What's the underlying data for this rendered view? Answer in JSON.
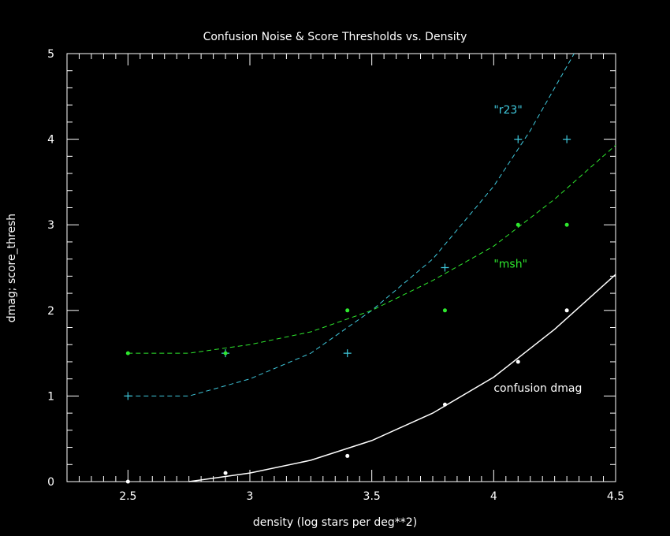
{
  "chart_data": {
    "type": "line",
    "title": "Confusion Noise & Score Thresholds vs. Density",
    "xlabel": "density (log stars per deg**2)",
    "ylabel": "dmag; score_thresh",
    "xlim": [
      2.25,
      4.5
    ],
    "ylim": [
      0,
      5
    ],
    "x_ticks": [
      "2.5",
      "3",
      "3.5",
      "4",
      "4.5"
    ],
    "x_tick_values": [
      2.5,
      3.0,
      3.5,
      4.0,
      4.5
    ],
    "y_ticks": [
      "0",
      "1",
      "2",
      "3",
      "4",
      "5"
    ],
    "y_tick_values": [
      0,
      1,
      2,
      3,
      4,
      5
    ],
    "background": "#000000",
    "axis_color": "#ffffff",
    "series": [
      {
        "name": "\"r23\"",
        "color": "#3fc8dc",
        "line_style": "dashed",
        "marker": "plus",
        "curve_x": [
          2.5,
          2.75,
          3.0,
          3.25,
          3.5,
          3.75,
          4.0,
          4.15,
          4.25,
          4.33
        ],
        "curve_y": [
          1.0,
          1.0,
          1.2,
          1.5,
          2.0,
          2.6,
          3.45,
          4.1,
          4.6,
          5.0
        ],
        "points_x": [
          2.5,
          2.9,
          3.4,
          3.8,
          4.1,
          4.3
        ],
        "points_y": [
          1.0,
          1.5,
          1.5,
          2.5,
          4.0,
          4.0
        ],
        "label": "\"r23\"",
        "label_pos": [
          4.0,
          4.3
        ]
      },
      {
        "name": "\"msh\"",
        "color": "#2ee82e",
        "line_style": "dashed",
        "marker": "dot",
        "curve_x": [
          2.5,
          2.75,
          3.0,
          3.25,
          3.5,
          3.75,
          4.0,
          4.25,
          4.5
        ],
        "curve_y": [
          1.5,
          1.5,
          1.6,
          1.75,
          2.0,
          2.35,
          2.75,
          3.3,
          3.93
        ],
        "points_x": [
          2.5,
          2.9,
          3.4,
          3.8,
          4.1,
          4.3
        ],
        "points_y": [
          1.5,
          1.5,
          2.0,
          2.0,
          3.0,
          3.0
        ],
        "label": "\"msh\"",
        "label_pos": [
          4.0,
          2.5
        ]
      },
      {
        "name": "confusion dmag",
        "color": "#ffffff",
        "line_style": "solid",
        "marker": "dot",
        "curve_x": [
          2.75,
          3.0,
          3.25,
          3.5,
          3.75,
          4.0,
          4.25,
          4.5
        ],
        "curve_y": [
          0.0,
          0.1,
          0.25,
          0.48,
          0.8,
          1.22,
          1.78,
          2.42
        ],
        "points_x": [
          2.5,
          2.9,
          3.4,
          3.8,
          4.1,
          4.3
        ],
        "points_y": [
          0.0,
          0.1,
          0.3,
          0.9,
          1.4,
          2.0
        ],
        "label": "confusion dmag",
        "label_pos": [
          4.0,
          1.05
        ]
      }
    ]
  }
}
